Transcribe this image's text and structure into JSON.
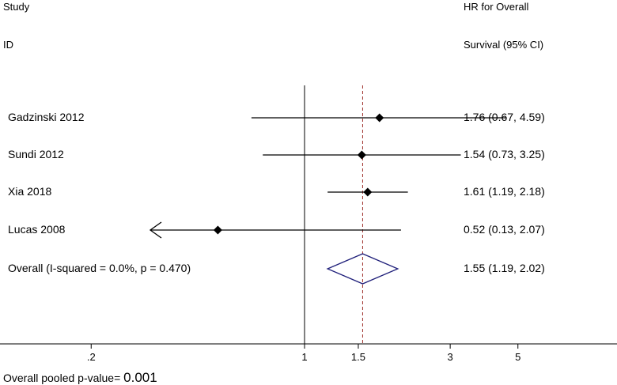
{
  "headers": {
    "study_line1": "Study",
    "study_line2": "ID",
    "effect_line1": "HR for Overall",
    "effect_line2": "Survival (95% CI)"
  },
  "footer": {
    "pooled_label": "Overall pooled p-value=",
    "pooled_value": "0.001"
  },
  "chart_data": {
    "type": "forest",
    "x_scale": "log",
    "xlim": [
      0.1,
      10
    ],
    "null_line": 1,
    "pooled_line": 1.55,
    "x_ticks": [
      {
        "value": 0.2,
        "label": ".2"
      },
      {
        "value": 1,
        "label": "1"
      },
      {
        "value": 1.5,
        "label": "1.5"
      },
      {
        "value": 3,
        "label": "3"
      },
      {
        "value": 5,
        "label": "5"
      }
    ],
    "studies": [
      {
        "label": "Gadzinski 2012",
        "hr": 1.76,
        "lower": 0.67,
        "upper": 4.59,
        "text": "1.76 (0.67, 4.59)",
        "arrow_left": false
      },
      {
        "label": "Sundi 2012",
        "hr": 1.54,
        "lower": 0.73,
        "upper": 3.25,
        "text": "1.54 (0.73, 3.25)",
        "arrow_left": false
      },
      {
        "label": "Xia 2018",
        "hr": 1.61,
        "lower": 1.19,
        "upper": 2.18,
        "text": "1.61 (1.19, 2.18)",
        "arrow_left": false
      },
      {
        "label": "Lucas 2008",
        "hr": 0.52,
        "lower": 0.13,
        "upper": 2.07,
        "text": "0.52 (0.13, 2.07)",
        "arrow_left": true
      }
    ],
    "overall": {
      "label": "Overall  (I-squared = 0.0%, p = 0.470)",
      "hr": 1.55,
      "lower": 1.19,
      "upper": 2.02,
      "text": "1.55 (1.19, 2.02)"
    },
    "colors": {
      "diamond": "#1f1f7a",
      "pooled_line": "#a0302c",
      "line": "#000000"
    }
  }
}
